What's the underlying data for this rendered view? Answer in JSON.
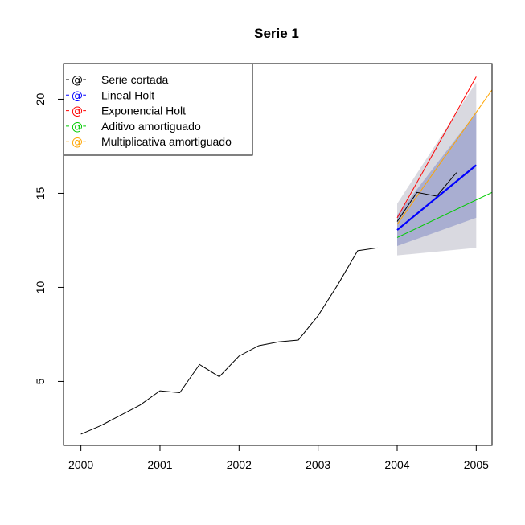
{
  "chart_data": {
    "type": "line",
    "title": "Serie 1",
    "xlabel": "",
    "ylabel": "",
    "xlim": [
      1999.78,
      2005.2
    ],
    "ylim": [
      1.6,
      21.9
    ],
    "x_ticks": [
      2000,
      2001,
      2002,
      2003,
      2004,
      2005
    ],
    "x_tick_labels": [
      "2000",
      "2001",
      "2002",
      "2003",
      "2004",
      "2005"
    ],
    "y_ticks": [
      5,
      10,
      15,
      20
    ],
    "y_tick_labels": [
      "5",
      "10",
      "15",
      "20"
    ],
    "grid": false,
    "legend_position": "top-left",
    "legend_glyph": "@",
    "colors": {
      "serie_cortada": "#000000",
      "lineal_holt": "#0000ff",
      "exponencial_holt": "#ff0000",
      "aditivo_amortiguado": "#00cc00",
      "multiplicativa_amortiguado": "#ffa500",
      "band_outer": "#d9d9e0",
      "band_inner": "#a9aed1"
    },
    "series": [
      {
        "name": "Serie cortada",
        "color": "#000000",
        "x": [
          2000,
          2000.25,
          2000.5,
          2000.75,
          2001,
          2001.25,
          2001.5,
          2001.75,
          2002,
          2002.25,
          2002.5,
          2002.75,
          2003,
          2003.25,
          2003.5,
          2003.75
        ],
        "values": [
          2.2,
          2.65,
          3.2,
          3.75,
          4.5,
          4.4,
          5.9,
          5.25,
          6.35,
          6.9,
          7.1,
          7.2,
          8.5,
          10.15,
          11.95,
          12.1
        ]
      },
      {
        "name": "Lineal Holt",
        "color": "#0000ff",
        "x": [
          2004,
          2005
        ],
        "values": [
          13.05,
          16.5
        ]
      },
      {
        "name": "Exponencial Holt",
        "color": "#ff0000",
        "x": [
          2004,
          2005
        ],
        "values": [
          13.7,
          21.2
        ]
      },
      {
        "name": "Aditivo amortiguado",
        "color": "#00cc00",
        "x": [
          2004,
          2005.2
        ],
        "values": [
          12.65,
          15.05
        ]
      },
      {
        "name": "Multiplicativa amortiguado",
        "color": "#ffa500",
        "x": [
          2004,
          2005.2
        ],
        "values": [
          13.35,
          20.5
        ]
      }
    ],
    "test_series": {
      "color": "#000000",
      "x": [
        2004,
        2004.25,
        2004.5,
        2004.75
      ],
      "values": [
        13.5,
        15.05,
        14.85,
        16.1
      ]
    },
    "bands": [
      {
        "level": "outer",
        "color": "#d9d9e0",
        "x": [
          2004,
          2005
        ],
        "lower": [
          11.7,
          12.1
        ],
        "upper": [
          14.45,
          20.9
        ]
      },
      {
        "level": "inner",
        "color": "#a9aed1",
        "x": [
          2004,
          2005
        ],
        "lower": [
          12.2,
          13.7
        ],
        "upper": [
          13.85,
          19.3
        ]
      }
    ]
  }
}
